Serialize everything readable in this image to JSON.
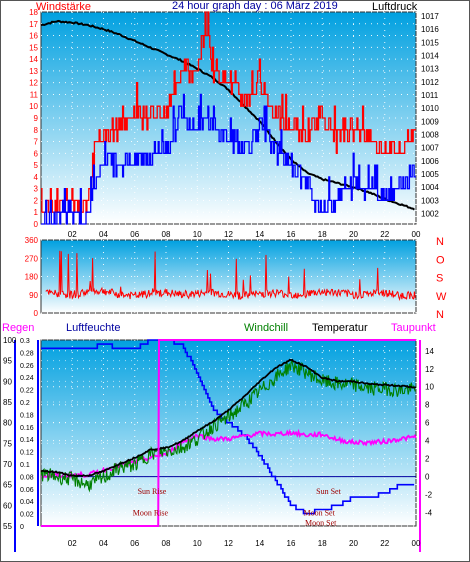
{
  "chart_data": [
    {
      "type": "line",
      "title": "24 hour graph day : 06 März 2019",
      "left_axis_label": "Windstärke",
      "right_axis_label": "Luftdruck",
      "x_ticks": [
        "02",
        "04",
        "06",
        "08",
        "10",
        "12",
        "14",
        "16",
        "18",
        "20",
        "22",
        "00"
      ],
      "left_ticks": [
        "0",
        "1",
        "2",
        "3",
        "4",
        "5",
        "6",
        "7",
        "8",
        "9",
        "10",
        "11",
        "12",
        "13",
        "14",
        "15",
        "16",
        "17",
        "18"
      ],
      "right_ticks": [
        "1002",
        "1003",
        "1004",
        "1005",
        "1006",
        "1007",
        "1008",
        "1009",
        "1010",
        "1011",
        "1012",
        "1013",
        "1014",
        "1015",
        "1016",
        "1017"
      ],
      "ylim_left": [
        0,
        18
      ],
      "ylim_right": [
        1001.2,
        1017.3
      ],
      "series": [
        {
          "name": "Luftdruck",
          "color": "#000000",
          "x": [
            0,
            1,
            2,
            3,
            4,
            5,
            6,
            7,
            8,
            9,
            10,
            11,
            12,
            13,
            14,
            15,
            16,
            17,
            18,
            19,
            20,
            21,
            22,
            23,
            24
          ],
          "values": [
            1016.3,
            1016.6,
            1016.5,
            1016.3,
            1016.0,
            1015.6,
            1015.1,
            1014.6,
            1014.1,
            1013.6,
            1013.0,
            1012.3,
            1011.4,
            1010.2,
            1009.0,
            1007.5,
            1006.1,
            1005.1,
            1004.6,
            1004.3,
            1004.0,
            1003.6,
            1003.1,
            1002.7,
            1002.3
          ]
        },
        {
          "name": "Wind gust",
          "color": "#ff0000",
          "x": [
            0,
            1,
            2,
            3,
            3.5,
            4,
            6,
            8,
            9,
            10,
            10.5,
            11,
            12,
            13,
            14,
            15,
            16,
            17,
            18,
            19,
            20,
            21,
            22,
            23,
            24
          ],
          "values": [
            1,
            1,
            2,
            1,
            7,
            7,
            9,
            9,
            13,
            12,
            17,
            13,
            12,
            10,
            12,
            9,
            8,
            7,
            9,
            7,
            8,
            7,
            6,
            6,
            8
          ]
        },
        {
          "name": "Wind speed",
          "color": "#0000ff",
          "x": [
            0,
            1,
            2,
            3,
            3.5,
            4,
            6,
            8,
            9,
            10,
            10.5,
            11,
            12,
            13,
            14,
            15,
            16,
            17,
            18,
            19,
            20,
            21,
            22,
            23,
            24
          ],
          "values": [
            0,
            0,
            1,
            0,
            4,
            5,
            5,
            6,
            9,
            8,
            9,
            8,
            7,
            6,
            8,
            6,
            5,
            3,
            1,
            2,
            3,
            3,
            2,
            3,
            4
          ]
        }
      ]
    },
    {
      "type": "line",
      "left_ticks": [
        "0",
        "90",
        "180",
        "270",
        "360"
      ],
      "right_ticks": [
        "N",
        "W",
        "S",
        "O",
        "N"
      ],
      "ylim": [
        0,
        360
      ],
      "series": [
        {
          "name": "Wind direction",
          "color": "#ff0000",
          "x": [
            0,
            1,
            2,
            3,
            4,
            5,
            6,
            7,
            8,
            9,
            10,
            11,
            12,
            13,
            14,
            15,
            16,
            17,
            18,
            19,
            20,
            21,
            22,
            23,
            24
          ],
          "values": [
            100,
            95,
            90,
            105,
            110,
            90,
            85,
            95,
            100,
            90,
            95,
            100,
            90,
            85,
            95,
            100,
            90,
            95,
            105,
            100,
            90,
            95,
            100,
            85,
            90
          ]
        }
      ]
    },
    {
      "type": "line",
      "headers": {
        "regen": "Regen",
        "luftfeuchte": "Luftfeuchte",
        "windchill": "Windchill",
        "temperatur": "Temperatur",
        "taupunkt": "Taupunkt"
      },
      "humidity_ticks": [
        "55",
        "60",
        "65",
        "70",
        "75",
        "80",
        "85",
        "90",
        "95",
        "100"
      ],
      "rain_ticks": [
        "0",
        "0.02",
        "0.04",
        "0.06",
        "0.08",
        "0.1",
        "0.12",
        "0.14",
        "0.16",
        "0.18",
        "0.2",
        "0.22",
        "0.24",
        "0.26",
        "0.28",
        "0.3"
      ],
      "temp_ticks": [
        "-4",
        "-2",
        "0",
        "2",
        "4",
        "6",
        "8",
        "10",
        "12",
        "14"
      ],
      "ylim_temp": [
        -5.5,
        15.2
      ],
      "ylim_humidity": [
        55,
        100
      ],
      "annotations": [
        {
          "text": "Sun Rise",
          "x": 7.1,
          "y": -1.6
        },
        {
          "text": "Moon Rise",
          "x": 7.0,
          "y": -4.0
        },
        {
          "text": "Sun Set",
          "x": 18.4,
          "y": -1.6
        },
        {
          "text": "Moon Set",
          "x": 17.8,
          "y": -4.0
        },
        {
          "text": "Moon Set",
          "x": 17.9,
          "y": -5.1
        }
      ],
      "series": [
        {
          "name": "Temperatur",
          "color": "#000000",
          "x": [
            0,
            1,
            2,
            3,
            4,
            5,
            6,
            7,
            8,
            9,
            10,
            11,
            12,
            13,
            14,
            15,
            16,
            17,
            18,
            19,
            20,
            21,
            22,
            23,
            24
          ],
          "values": [
            0.6,
            0.5,
            0.1,
            0.1,
            0.6,
            1.4,
            2.1,
            3.0,
            3.2,
            3.9,
            5.1,
            6.1,
            7.4,
            8.9,
            10.6,
            12.1,
            13.0,
            12.2,
            11.0,
            10.6,
            10.6,
            10.3,
            10.2,
            10.1,
            9.9
          ]
        },
        {
          "name": "Windchill",
          "color": "#008000",
          "x": [
            0,
            1,
            2,
            3,
            4,
            5,
            6,
            7,
            8,
            9,
            10,
            11,
            12,
            13,
            14,
            15,
            16,
            17,
            18,
            19,
            20,
            21,
            22,
            23,
            24
          ],
          "values": [
            0.3,
            0.0,
            -0.3,
            -0.9,
            -0.2,
            1.0,
            1.3,
            2.5,
            2.8,
            3.2,
            4.2,
            5.6,
            6.6,
            8.0,
            9.5,
            11.0,
            12.4,
            11.6,
            10.6,
            10.3,
            10.2,
            9.8,
            9.8,
            9.6,
            9.7
          ]
        },
        {
          "name": "Taupunkt",
          "color": "#ff00ff",
          "x": [
            0,
            1,
            2,
            3,
            4,
            5,
            6,
            7,
            8,
            9,
            10,
            11,
            12,
            13,
            14,
            15,
            16,
            17,
            18,
            19,
            20,
            21,
            22,
            23,
            24
          ],
          "values": [
            0.1,
            0.1,
            0.2,
            0.2,
            0.7,
            1.2,
            1.6,
            2.1,
            2.5,
            3.8,
            4.6,
            4.2,
            4.2,
            4.5,
            4.8,
            4.7,
            4.9,
            4.6,
            4.7,
            4.1,
            3.8,
            3.8,
            3.9,
            4.2,
            4.4
          ]
        },
        {
          "name": "Luftfeuchte",
          "color": "#0000ff",
          "x": [
            0,
            1,
            2,
            3,
            4,
            5,
            6,
            7,
            8,
            9,
            10,
            11,
            12,
            13,
            14,
            15,
            16,
            17,
            18,
            19,
            20,
            21,
            22,
            23,
            24
          ],
          "values": [
            98,
            98,
            98,
            98,
            99,
            98,
            98,
            100,
            100,
            99,
            92,
            83,
            80,
            77,
            72,
            66,
            60,
            58,
            59,
            60,
            62,
            62,
            63,
            65,
            65
          ]
        },
        {
          "name": "Regen",
          "color": "#ff00ff",
          "x": [
            0,
            7.5,
            7.55,
            24
          ],
          "values": [
            0,
            0,
            0.3,
            0.3
          ]
        }
      ]
    }
  ],
  "colors": {
    "plot_top": "#00a0e0",
    "plot_bottom": "#ffffff",
    "title_red": "#ff0000",
    "title_blue": "#0000a0",
    "title_black": "#000000",
    "windchill_green": "#008000",
    "dewpoint_magenta": "#ff00ff",
    "humidity_blue": "#0000ff"
  }
}
